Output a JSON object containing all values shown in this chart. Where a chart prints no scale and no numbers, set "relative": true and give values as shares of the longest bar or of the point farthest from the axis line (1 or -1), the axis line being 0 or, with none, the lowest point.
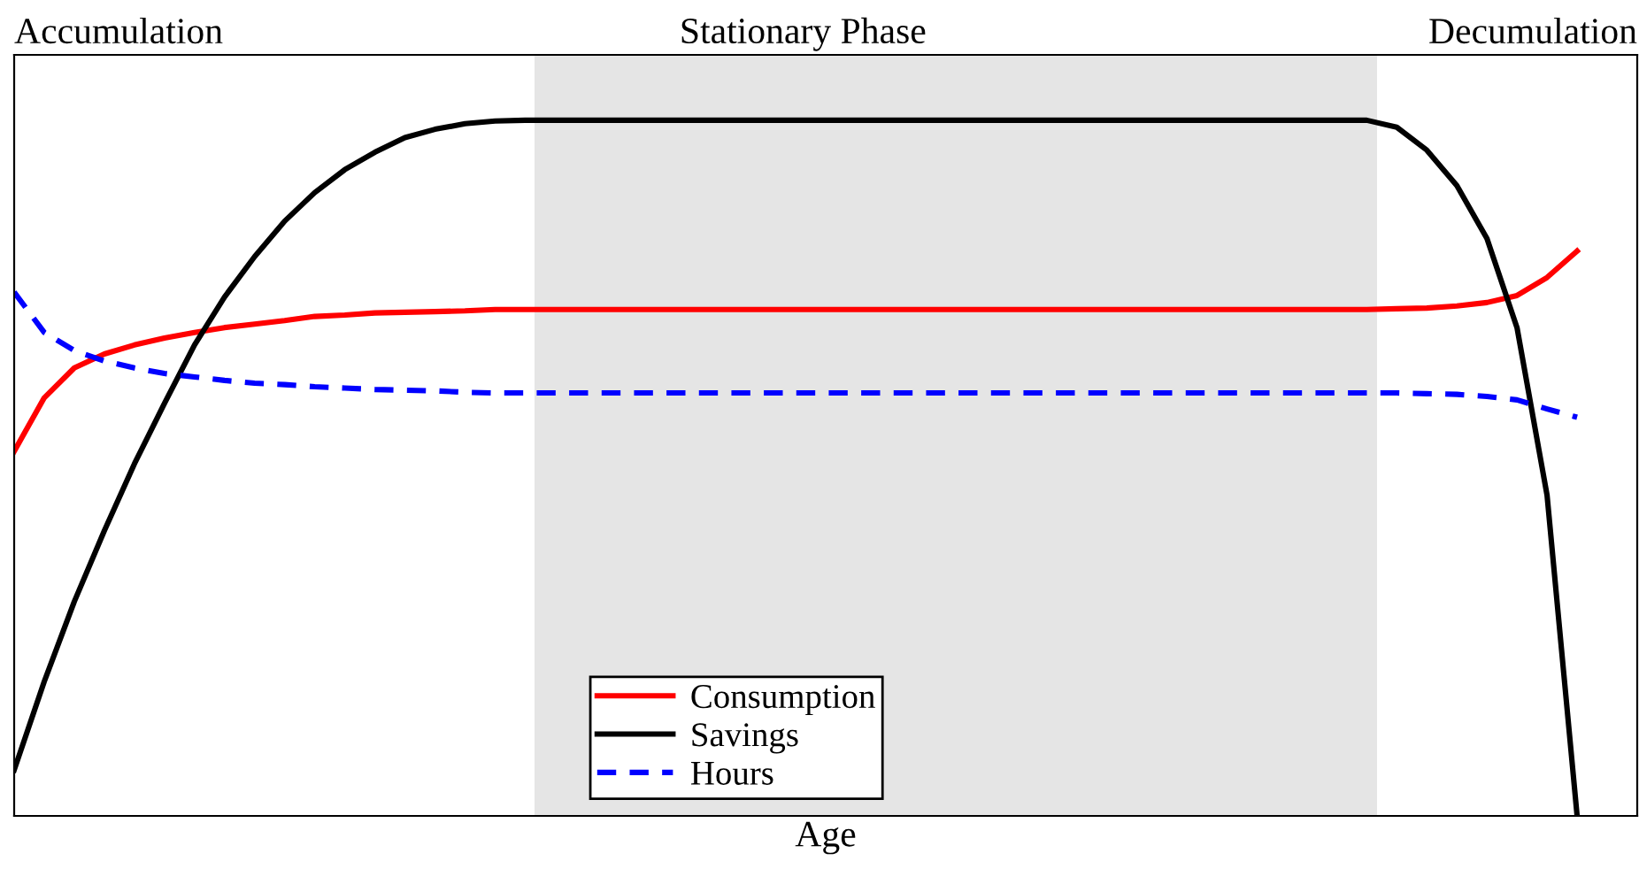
{
  "chart_data": {
    "type": "line",
    "relative": true,
    "xlabel": "Age",
    "legend": "bottom",
    "categories": [
      null,
      null,
      null,
      null,
      null,
      null,
      null,
      null,
      null,
      null,
      null,
      null,
      null,
      null,
      null,
      null,
      null,
      null,
      null,
      null,
      null,
      null,
      null,
      null,
      null,
      null,
      null,
      null,
      null,
      null,
      null,
      null,
      null,
      null,
      null,
      null,
      null,
      null,
      null,
      null,
      null,
      null,
      null,
      null,
      null,
      null,
      null,
      null,
      null,
      null,
      null,
      null,
      null,
      null,
      null
    ],
    "series": [
      {
        "name": "Consumption",
        "color": "#ff0000",
        "line_style": "solid",
        "values": [
          0.524,
          0.601,
          0.644,
          0.664,
          0.677,
          0.687,
          0.695,
          0.702,
          0.707,
          0.712,
          0.718,
          0.72,
          0.723,
          0.724,
          0.725,
          0.726,
          0.728,
          0.728,
          0.728,
          0.728,
          0.728,
          0.728,
          0.728,
          0.728,
          0.728,
          0.728,
          0.728,
          0.728,
          0.728,
          0.728,
          0.728,
          0.728,
          0.728,
          0.728,
          0.728,
          0.728,
          0.728,
          0.728,
          0.728,
          0.728,
          0.728,
          0.728,
          0.728,
          0.728,
          0.728,
          0.728,
          0.729,
          0.73,
          0.733,
          0.738,
          0.748,
          0.774,
          0.812,
          null,
          null
        ]
      },
      {
        "name": "Savings",
        "color": "#000000",
        "line_style": "solid",
        "values": [
          0.066,
          0.193,
          0.308,
          0.41,
          0.506,
          0.593,
          0.677,
          0.746,
          0.804,
          0.855,
          0.896,
          0.929,
          0.954,
          0.975,
          0.987,
          0.995,
          0.999,
          1,
          1,
          1,
          1,
          1,
          1,
          1,
          1,
          1,
          1,
          1,
          1,
          1,
          1,
          1,
          1,
          1,
          1,
          1,
          1,
          1,
          1,
          1,
          1,
          1,
          1,
          1,
          1,
          1,
          0.99,
          0.957,
          0.906,
          0.83,
          0.702,
          0.461,
          0,
          null,
          null
        ]
      },
      {
        "name": "Hours",
        "color": "#0000ff",
        "line_style": "dashed",
        "values": [
          0.753,
          0.695,
          0.669,
          0.654,
          0.644,
          0.636,
          0.631,
          0.626,
          0.622,
          0.62,
          0.617,
          0.615,
          0.613,
          0.612,
          0.611,
          0.609,
          0.608,
          0.608,
          0.608,
          0.608,
          0.608,
          0.608,
          0.608,
          0.608,
          0.608,
          0.608,
          0.608,
          0.608,
          0.608,
          0.608,
          0.608,
          0.608,
          0.608,
          0.608,
          0.608,
          0.608,
          0.608,
          0.608,
          0.608,
          0.608,
          0.608,
          0.608,
          0.608,
          0.608,
          0.608,
          0.608,
          0.608,
          0.607,
          0.606,
          0.603,
          0.598,
          0.585,
          0.573,
          null,
          null
        ]
      }
    ],
    "annotations": [
      "Accumulation",
      "Stationary Phase",
      "Decumulation"
    ]
  }
}
